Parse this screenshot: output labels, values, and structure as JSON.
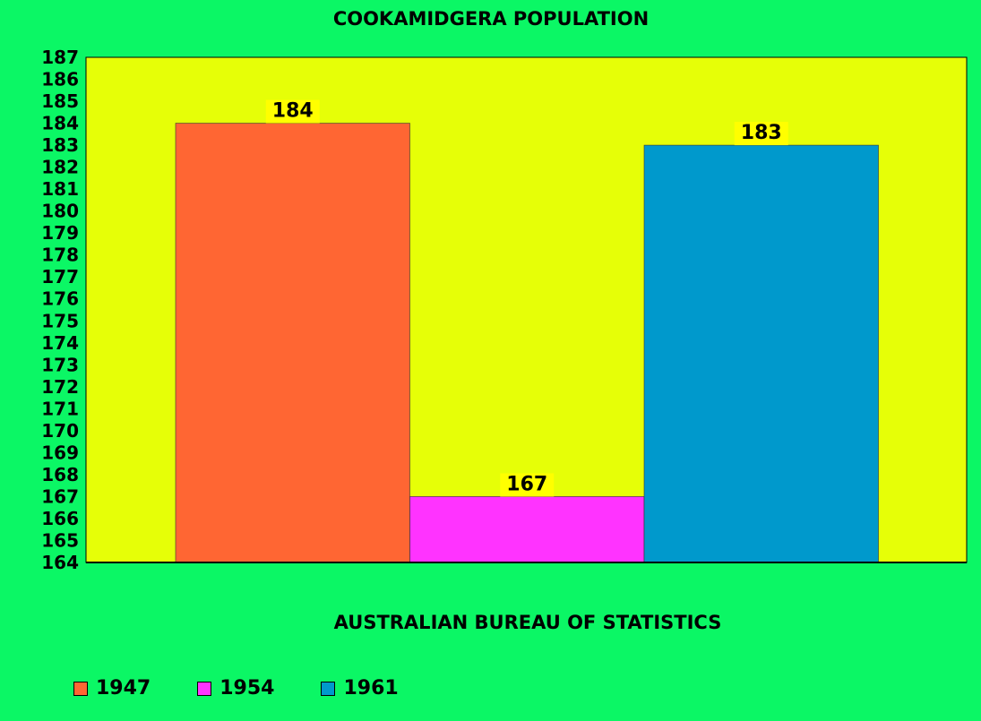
{
  "chart_data": {
    "type": "bar",
    "title": "COOKAMIDGERA POPULATION",
    "xlabel": "AUSTRALIAN BUREAU OF STATISTICS",
    "ylabel": "",
    "ylim": [
      164,
      187
    ],
    "yticks": [
      "164",
      "165",
      "166",
      "167",
      "168",
      "169",
      "170",
      "171",
      "172",
      "173",
      "174",
      "175",
      "176",
      "177",
      "178",
      "179",
      "180",
      "181",
      "182",
      "183",
      "184",
      "185",
      "186",
      "187"
    ],
    "grid": false,
    "legend_position": "bottom-left",
    "series": [
      {
        "name": "1947",
        "value": 184,
        "label": "184",
        "color": "#ff6633"
      },
      {
        "name": "1954",
        "value": 167,
        "label": "167",
        "color": "#ff33ff"
      },
      {
        "name": "1961",
        "value": 183,
        "label": "183",
        "color": "#0099cc"
      }
    ]
  },
  "colors": {
    "background": "#0bf765",
    "plot_area": "#e6ff07",
    "data_label_bg": "#ffff00"
  }
}
